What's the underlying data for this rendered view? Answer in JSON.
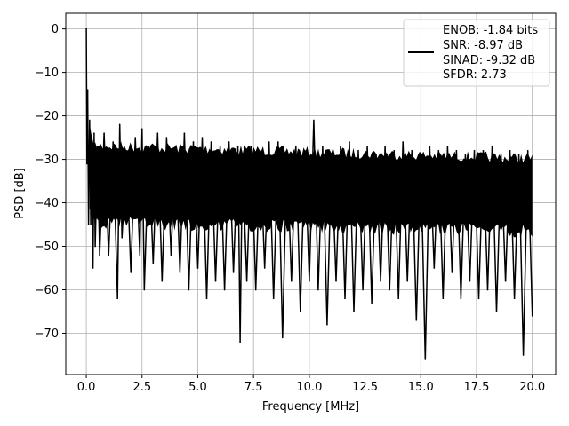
{
  "chart_data": {
    "type": "line",
    "title": "",
    "xlabel": "Frequency [MHz]",
    "ylabel": "PSD [dB]",
    "xlim": [
      -0.92,
      21.05
    ],
    "ylim": [
      -79.5,
      3.6
    ],
    "x_ticks": [
      0.0,
      2.5,
      5.0,
      7.5,
      10.0,
      12.5,
      15.0,
      17.5,
      20.0
    ],
    "x_tick_labels": [
      "0.0",
      "2.5",
      "5.0",
      "7.5",
      "10.0",
      "12.5",
      "15.0",
      "17.5",
      "20.0"
    ],
    "y_ticks": [
      0,
      -10,
      -20,
      -30,
      -40,
      -50,
      -60,
      -70
    ],
    "y_tick_labels": [
      "0",
      "−10",
      "−20",
      "−30",
      "−40",
      "−50",
      "−60",
      "−70"
    ],
    "grid": true,
    "legend_placement": "top-right",
    "legend_lines": [
      "ENOB: -1.84 bits",
      "SNR: -8.97 dB",
      "SINAD: -9.32 dB",
      "SFDR: 2.73"
    ],
    "series": [
      {
        "color": "#000000",
        "x": [
          0.0,
          0.03,
          0.06,
          0.1,
          0.15,
          0.2,
          0.25,
          0.3,
          0.35,
          0.4,
          0.5,
          0.6,
          0.8,
          1.0,
          1.2,
          1.4,
          1.5,
          1.6,
          1.8,
          2.0,
          2.2,
          2.4,
          2.5,
          2.6,
          2.8,
          3.0,
          3.2,
          3.4,
          3.6,
          3.8,
          4.0,
          4.2,
          4.4,
          4.6,
          4.8,
          5.0,
          5.2,
          5.4,
          5.6,
          5.8,
          6.0,
          6.2,
          6.4,
          6.6,
          6.8,
          6.9,
          7.0,
          7.2,
          7.4,
          7.6,
          7.8,
          8.0,
          8.2,
          8.4,
          8.6,
          8.8,
          9.0,
          9.2,
          9.4,
          9.6,
          9.8,
          10.0,
          10.2,
          10.4,
          10.6,
          10.8,
          11.0,
          11.2,
          11.4,
          11.6,
          11.8,
          12.0,
          12.2,
          12.4,
          12.6,
          12.8,
          13.0,
          13.2,
          13.4,
          13.6,
          13.8,
          14.0,
          14.2,
          14.4,
          14.6,
          14.8,
          15.0,
          15.2,
          15.4,
          15.6,
          15.8,
          16.0,
          16.2,
          16.4,
          16.6,
          16.8,
          17.0,
          17.2,
          17.4,
          17.6,
          17.8,
          18.0,
          18.2,
          18.4,
          18.6,
          18.8,
          19.0,
          19.2,
          19.4,
          19.6,
          19.8,
          20.0
        ],
        "y": [
          0,
          -31,
          -14,
          -45,
          -21,
          -45,
          -25,
          -55,
          -24,
          -50,
          -27,
          -52,
          -24,
          -52,
          -26,
          -62,
          -22,
          -48,
          -28,
          -56,
          -25,
          -52,
          -23,
          -60,
          -27,
          -54,
          -24,
          -58,
          -25,
          -52,
          -27,
          -56,
          -24,
          -60,
          -26,
          -55,
          -25,
          -62,
          -26,
          -58,
          -27,
          -60,
          -26,
          -56,
          -27,
          -72,
          -30,
          -58,
          -27,
          -60,
          -28,
          -55,
          -26,
          -62,
          -26,
          -71,
          -28,
          -58,
          -27,
          -65,
          -28,
          -58,
          -21,
          -60,
          -27,
          -68,
          -29,
          -58,
          -27,
          -62,
          -26,
          -65,
          -28,
          -60,
          -27,
          -63,
          -29,
          -58,
          -27,
          -60,
          -28,
          -62,
          -26,
          -58,
          -28,
          -67,
          -29,
          -76,
          -27,
          -55,
          -28,
          -62,
          -27,
          -56,
          -28,
          -62,
          -29,
          -58,
          -28,
          -62,
          -28,
          -60,
          -27,
          -65,
          -29,
          -58,
          -28,
          -62,
          -29,
          -75,
          -28,
          -66
        ]
      }
    ]
  }
}
